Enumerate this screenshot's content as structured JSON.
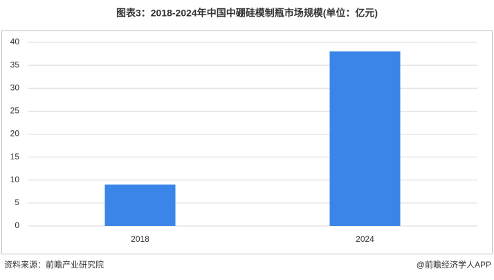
{
  "chart_data": {
    "type": "bar",
    "title": "图表3：2018-2024年中国中硼硅模制瓶市场规模(单位：亿元)",
    "categories": [
      "2018",
      "2024"
    ],
    "values": [
      9,
      38
    ],
    "color": "#3a86e8",
    "ylim": [
      0,
      40
    ],
    "yticks": [
      0,
      5,
      10,
      15,
      20,
      25,
      30,
      35,
      40
    ],
    "grid": true
  },
  "footer": {
    "source": "资料来源：前瞻产业研究院",
    "brand": "@前瞻经济学人APP"
  }
}
